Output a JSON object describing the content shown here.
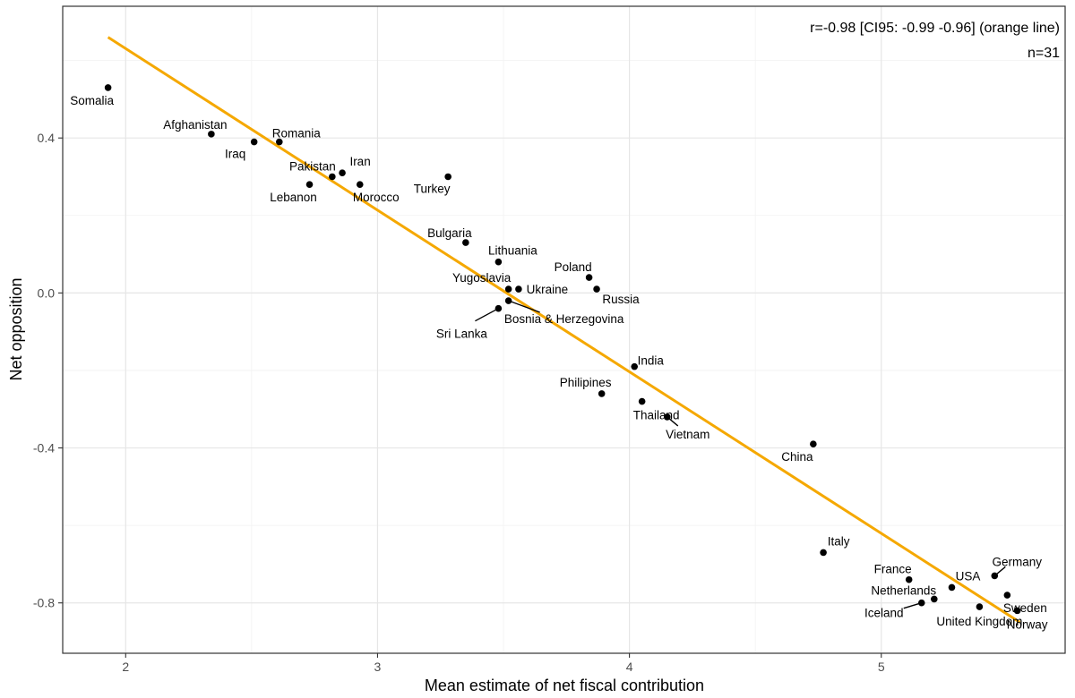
{
  "chart_data": {
    "type": "scatter",
    "xlabel": "Mean estimate of net fiscal contribution",
    "ylabel": "Net opposition",
    "xlim": [
      1.75,
      5.73
    ],
    "ylim": [
      -0.93,
      0.74
    ],
    "x_ticks": [
      2,
      3,
      4,
      5
    ],
    "x_tick_labels": [
      "2",
      "3",
      "4",
      "5"
    ],
    "y_ticks": [
      0.4,
      0.0,
      -0.4,
      -0.8
    ],
    "y_tick_labels": [
      "0.4",
      "0.0",
      "-0.4",
      "-0.8"
    ],
    "grid": true,
    "annotations": [
      "r=-0.98 [CI95: -0.99 -0.96] (orange line)",
      "n=31"
    ],
    "fit_line": {
      "color": "#F5A800",
      "x": [
        1.93,
        5.55
      ],
      "y": [
        0.66,
        -0.85
      ]
    },
    "points": [
      {
        "name": "Somalia",
        "x": 1.93,
        "y": 0.53
      },
      {
        "name": "Afghanistan",
        "x": 2.34,
        "y": 0.41
      },
      {
        "name": "Iraq",
        "x": 2.51,
        "y": 0.39
      },
      {
        "name": "Romania",
        "x": 2.61,
        "y": 0.39
      },
      {
        "name": "Lebanon",
        "x": 2.73,
        "y": 0.28
      },
      {
        "name": "Pakistan",
        "x": 2.82,
        "y": 0.3
      },
      {
        "name": "Iran",
        "x": 2.86,
        "y": 0.31
      },
      {
        "name": "Morocco",
        "x": 2.93,
        "y": 0.28
      },
      {
        "name": "Turkey",
        "x": 3.28,
        "y": 0.3
      },
      {
        "name": "Bulgaria",
        "x": 3.35,
        "y": 0.13
      },
      {
        "name": "Lithuania",
        "x": 3.48,
        "y": 0.08
      },
      {
        "name": "Yugoslavia",
        "x": 3.52,
        "y": 0.01
      },
      {
        "name": "Ukraine",
        "x": 3.56,
        "y": 0.01
      },
      {
        "name": "Bosnia & Herzegovina",
        "x": 3.52,
        "y": -0.02
      },
      {
        "name": "Sri Lanka",
        "x": 3.48,
        "y": -0.04
      },
      {
        "name": "Poland",
        "x": 3.84,
        "y": 0.04
      },
      {
        "name": "Russia",
        "x": 3.87,
        "y": 0.01
      },
      {
        "name": "India",
        "x": 4.02,
        "y": -0.19
      },
      {
        "name": "Philipines",
        "x": 3.89,
        "y": -0.26
      },
      {
        "name": "Thailand",
        "x": 4.05,
        "y": -0.28
      },
      {
        "name": "Vietnam",
        "x": 4.15,
        "y": -0.32
      },
      {
        "name": "China",
        "x": 4.73,
        "y": -0.39
      },
      {
        "name": "Italy",
        "x": 4.77,
        "y": -0.67
      },
      {
        "name": "France",
        "x": 5.11,
        "y": -0.74
      },
      {
        "name": "Netherlands",
        "x": 5.21,
        "y": -0.79
      },
      {
        "name": "Iceland",
        "x": 5.16,
        "y": -0.8
      },
      {
        "name": "USA",
        "x": 5.28,
        "y": -0.76
      },
      {
        "name": "United Kingdom",
        "x": 5.39,
        "y": -0.81
      },
      {
        "name": "Germany",
        "x": 5.45,
        "y": -0.73
      },
      {
        "name": "Sweden",
        "x": 5.5,
        "y": -0.78
      },
      {
        "name": "Norway",
        "x": 5.54,
        "y": -0.82
      }
    ]
  }
}
